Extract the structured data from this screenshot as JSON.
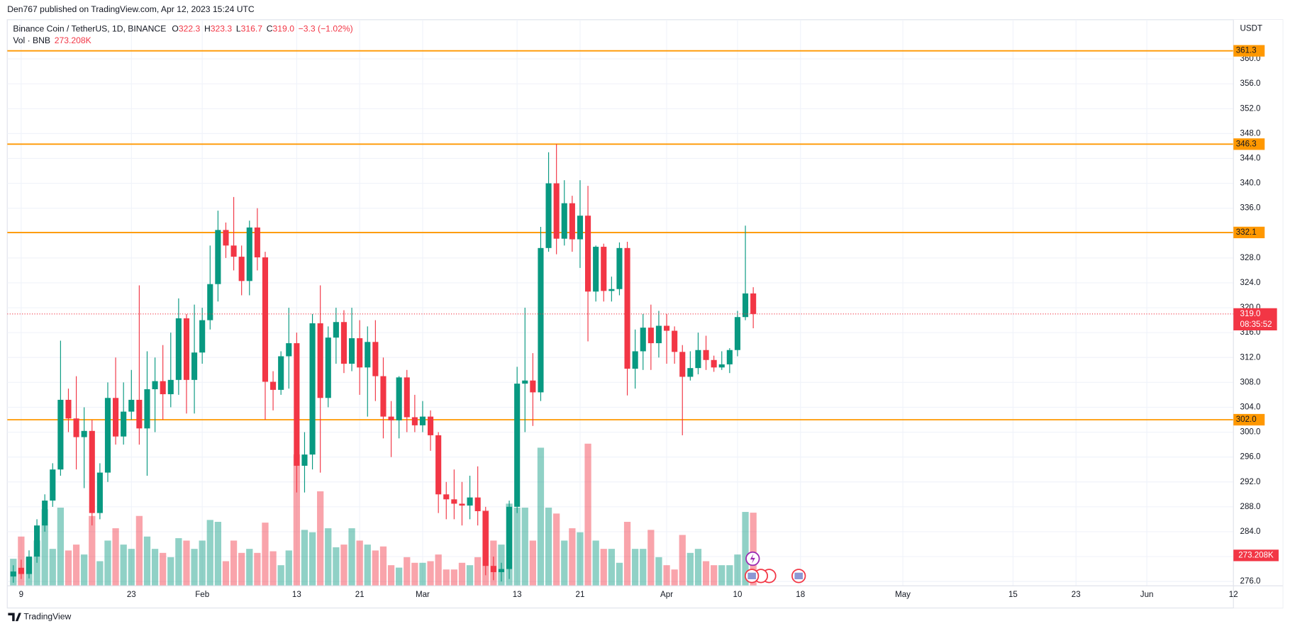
{
  "chart_data": {
    "type": "candlestick",
    "published": "Den767 published on TradingView.com, Apr 12, 2023 15:24 UTC",
    "title": "Binance Coin / TetherUS, 1D, BINANCE",
    "ohlc_legend": [
      {
        "key": "O",
        "label": "322.3"
      },
      {
        "key": "H",
        "label": "323.3"
      },
      {
        "key": "L",
        "label": "316.7"
      },
      {
        "key": "C",
        "label": "319.0"
      }
    ],
    "change": "−3.3 (−1.02%)",
    "currency": "USDT",
    "brand": "TradingView",
    "colors": {
      "up": "#089981",
      "down": "#f23645"
    },
    "x": [
      "2023-01-08",
      "2023-01-09",
      "2023-01-10",
      "2023-01-11",
      "2023-01-12",
      "2023-01-13",
      "2023-01-14",
      "2023-01-15",
      "2023-01-16",
      "2023-01-17",
      "2023-01-18",
      "2023-01-19",
      "2023-01-20",
      "2023-01-21",
      "2023-01-22",
      "2023-01-23",
      "2023-01-24",
      "2023-01-25",
      "2023-01-26",
      "2023-01-27",
      "2023-01-28",
      "2023-01-29",
      "2023-01-30",
      "2023-01-31",
      "2023-02-01",
      "2023-02-02",
      "2023-02-03",
      "2023-02-04",
      "2023-02-05",
      "2023-02-06",
      "2023-02-07",
      "2023-02-08",
      "2023-02-09",
      "2023-02-10",
      "2023-02-11",
      "2023-02-12",
      "2023-02-13",
      "2023-02-14",
      "2023-02-15",
      "2023-02-16",
      "2023-02-17",
      "2023-02-18",
      "2023-02-19",
      "2023-02-20",
      "2023-02-21",
      "2023-02-22",
      "2023-02-23",
      "2023-02-24",
      "2023-02-25",
      "2023-02-26",
      "2023-02-27",
      "2023-02-28",
      "2023-03-01",
      "2023-03-02",
      "2023-03-03",
      "2023-03-04",
      "2023-03-05",
      "2023-03-06",
      "2023-03-07",
      "2023-03-08",
      "2023-03-09",
      "2023-03-10",
      "2023-03-11",
      "2023-03-12",
      "2023-03-13",
      "2023-03-14",
      "2023-03-15",
      "2023-03-16",
      "2023-03-17",
      "2023-03-18",
      "2023-03-19",
      "2023-03-20",
      "2023-03-21",
      "2023-03-22",
      "2023-03-23",
      "2023-03-24",
      "2023-03-25",
      "2023-03-26",
      "2023-03-27",
      "2023-03-28",
      "2023-03-29",
      "2023-03-30",
      "2023-03-31",
      "2023-04-01",
      "2023-04-02",
      "2023-04-03",
      "2023-04-04",
      "2023-04-05",
      "2023-04-06",
      "2023-04-07",
      "2023-04-08",
      "2023-04-09",
      "2023-04-10",
      "2023-04-11",
      "2023-04-12"
    ],
    "open": [
      276.8,
      278.2,
      277.2,
      280,
      285,
      289,
      294,
      305.2,
      302.2,
      299.2,
      300.2,
      287,
      293.5,
      305.5,
      299.3,
      303.3,
      305.2,
      300.6,
      306.9,
      308.2,
      306.1,
      308.4,
      318.3,
      308.4,
      312.8,
      318,
      323.8,
      332.5,
      330,
      328.2,
      324.3,
      332.9,
      328.1,
      308.1,
      306.8,
      312.2,
      314.3,
      294.6,
      296.4,
      317.5,
      305.5,
      315.2,
      317.7,
      311,
      315.1,
      310.4,
      314.5,
      309,
      302.5,
      301.9,
      308.8,
      302.4,
      301.1,
      302.5,
      299.5,
      290,
      289.2,
      288.5,
      288.2,
      289.5,
      287.3,
      278.5,
      277.5,
      278,
      288,
      307.8,
      308.3,
      306.4,
      329.6,
      340,
      331.1,
      336.8,
      331,
      334.8,
      322.6,
      329.8,
      322.7,
      323,
      329.6,
      310.2,
      313,
      316.8,
      314.3,
      317.1,
      316.3,
      312.9,
      308.9,
      310.3,
      313.2,
      311.6,
      310.4,
      310.9,
      313.2,
      318.5,
      322.3
    ],
    "high": [
      278.6,
      279.5,
      281,
      286,
      290,
      295,
      314.7,
      307,
      309,
      304,
      302,
      295,
      308,
      312,
      308,
      310,
      323.6,
      313,
      312,
      314,
      316,
      321.5,
      319,
      320.5,
      320,
      330,
      335.6,
      333.7,
      337.8,
      330,
      334,
      336,
      329,
      309.8,
      313,
      320,
      316,
      300,
      319,
      323.6,
      317,
      320,
      319.6,
      320,
      318,
      317,
      318,
      312,
      305,
      309,
      310,
      306,
      305,
      303.5,
      300,
      292,
      294,
      292,
      293,
      294.5,
      288,
      280,
      279,
      289,
      310.5,
      320,
      312.7,
      333,
      345,
      346.3,
      340.5,
      338,
      340.5,
      339.6,
      330,
      330.3,
      325,
      330.5,
      330.6,
      316.5,
      319,
      320.5,
      319.5,
      319,
      317,
      314,
      313,
      316,
      315.5,
      312.3,
      313,
      313.5,
      319.5,
      333.2,
      323.3
    ],
    "low": [
      275.8,
      276.4,
      276.5,
      279,
      284,
      288,
      293,
      300,
      294,
      291,
      285,
      286,
      292,
      298,
      298,
      302,
      298,
      293,
      300,
      302,
      304,
      306,
      303,
      303,
      311,
      316.5,
      321,
      328,
      326,
      322,
      322,
      326,
      302,
      303.5,
      306,
      307,
      290.3,
      290.3,
      294,
      293.5,
      304,
      311,
      309.5,
      309.8,
      306,
      302.5,
      305,
      299,
      296,
      299,
      300,
      300,
      300,
      297,
      287,
      286,
      286,
      285,
      286,
      285,
      277,
      276.2,
      276,
      276.4,
      287,
      300,
      301,
      305,
      329,
      328.6,
      330,
      329,
      326.4,
      314.6,
      321,
      321,
      321,
      322,
      305.9,
      307,
      310,
      310,
      312,
      311,
      311,
      299.5,
      308.3,
      309.3,
      310,
      309.7,
      310,
      309.5,
      312.2,
      318,
      316.7
    ],
    "close": [
      277.6,
      277.2,
      280,
      285,
      289,
      294,
      305.2,
      302.2,
      299.2,
      300.2,
      287,
      293.5,
      305.5,
      299.3,
      303.3,
      305.2,
      300.6,
      306.9,
      308.2,
      306.1,
      308.4,
      318.3,
      308.4,
      312.8,
      318,
      323.8,
      332.5,
      330,
      328.2,
      324.3,
      332.9,
      328.1,
      308.1,
      306.8,
      312.2,
      314.3,
      294.6,
      296.4,
      317.5,
      305.5,
      315.2,
      317.7,
      311,
      315.1,
      310.4,
      314.5,
      309,
      302.5,
      301.9,
      308.8,
      302.4,
      301.1,
      302.5,
      299.5,
      290,
      289.2,
      288.5,
      288.2,
      289.5,
      287.3,
      278.5,
      277.5,
      278,
      288,
      307.8,
      308.3,
      306.4,
      329.6,
      340,
      331.1,
      336.8,
      331,
      334.8,
      322.6,
      329.8,
      322.7,
      323,
      329.6,
      310.2,
      313,
      316.8,
      314.3,
      317.1,
      316.3,
      312.9,
      308.9,
      310.3,
      313.2,
      311.6,
      310.4,
      310.9,
      313.2,
      318.5,
      322.3,
      319
    ],
    "volume": {
      "name": "Vol · BNB",
      "last_label": "273.208K",
      "values": [
        101000,
        184000,
        107000,
        169000,
        286000,
        138000,
        292000,
        132000,
        154000,
        117000,
        261000,
        92000,
        169000,
        215000,
        154000,
        138000,
        261000,
        184000,
        138000,
        123000,
        107000,
        178000,
        169000,
        138000,
        169000,
        246000,
        239000,
        92000,
        169000,
        123000,
        138000,
        123000,
        236000,
        129000,
        77000,
        132000,
        491000,
        209000,
        200000,
        353000,
        215000,
        144000,
        154000,
        215000,
        169000,
        154000,
        132000,
        147000,
        77000,
        68000,
        107000,
        86000,
        86000,
        92000,
        117000,
        61000,
        61000,
        86000,
        77000,
        107000,
        282000,
        169000,
        154000,
        307000,
        292000,
        292000,
        169000,
        516000,
        292000,
        270000,
        169000,
        215000,
        200000,
        531000,
        169000,
        138000,
        138000,
        86000,
        239000,
        138000,
        138000,
        209000,
        107000,
        77000,
        61000,
        190000,
        123000,
        138000,
        92000,
        77000,
        77000,
        77000,
        117000,
        276000,
        273208
      ]
    },
    "levels": [
      361.3,
      346.3,
      332.1,
      {
        "value": 302,
        "label": "302.0"
      }
    ],
    "level_color": "#ff9800",
    "last_price": {
      "value": 319,
      "label": "319.0"
    },
    "countdown": "08:35:52",
    "xlim": [
      "2023-01-07",
      "2023-06-12"
    ],
    "xticks": [
      {
        "value": "2023-01-09",
        "label": "9"
      },
      {
        "value": "2023-01-23",
        "label": "23"
      },
      {
        "value": "2023-02-01",
        "label": "Feb"
      },
      {
        "value": "2023-02-13",
        "label": "13"
      },
      {
        "value": "2023-02-21",
        "label": "21"
      },
      {
        "value": "2023-03-01",
        "label": "Mar"
      },
      {
        "value": "2023-03-13",
        "label": "13"
      },
      {
        "value": "2023-03-21",
        "label": "21"
      },
      {
        "value": "2023-04-01",
        "label": "Apr"
      },
      {
        "value": "2023-04-10",
        "label": "10"
      },
      {
        "value": "2023-04-18",
        "label": "18"
      },
      {
        "value": "2023-05-01",
        "label": "May"
      },
      {
        "value": "2023-05-15",
        "label": "15"
      },
      {
        "value": "2023-05-23",
        "label": "23"
      },
      {
        "value": "2023-06-01",
        "label": "Jun"
      },
      {
        "value": "2023-06-12",
        "label": "12"
      }
    ],
    "ylim": [
      275.3,
      366.3
    ],
    "yticks": [
      {
        "value": 276,
        "label": "276.0"
      },
      {
        "value": 280,
        "label": "280.0"
      },
      {
        "value": 284,
        "label": "284.0"
      },
      {
        "value": 288,
        "label": "288.0"
      },
      {
        "value": 292,
        "label": "292.0"
      },
      {
        "value": 296,
        "label": "296.0"
      },
      {
        "value": 300,
        "label": "300.0"
      },
      {
        "value": 304,
        "label": "304.0"
      },
      {
        "value": 308,
        "label": "308.0"
      },
      {
        "value": 312,
        "label": "312.0"
      },
      {
        "value": 316,
        "label": "316.0"
      },
      {
        "value": 320,
        "label": "320.0"
      },
      {
        "value": 324,
        "label": "324.0"
      },
      {
        "value": 328,
        "label": "328.0"
      },
      {
        "value": 332,
        "label": "332.0"
      },
      {
        "value": 336,
        "label": "336.0"
      },
      {
        "value": 340,
        "label": "340.0"
      },
      {
        "value": 344,
        "label": "344.0"
      },
      {
        "value": 348,
        "label": "348.0"
      },
      {
        "value": 352,
        "label": "352.0"
      },
      {
        "value": 356,
        "label": "356.0"
      },
      {
        "value": 360,
        "label": "360.0"
      }
    ],
    "grid": true
  }
}
